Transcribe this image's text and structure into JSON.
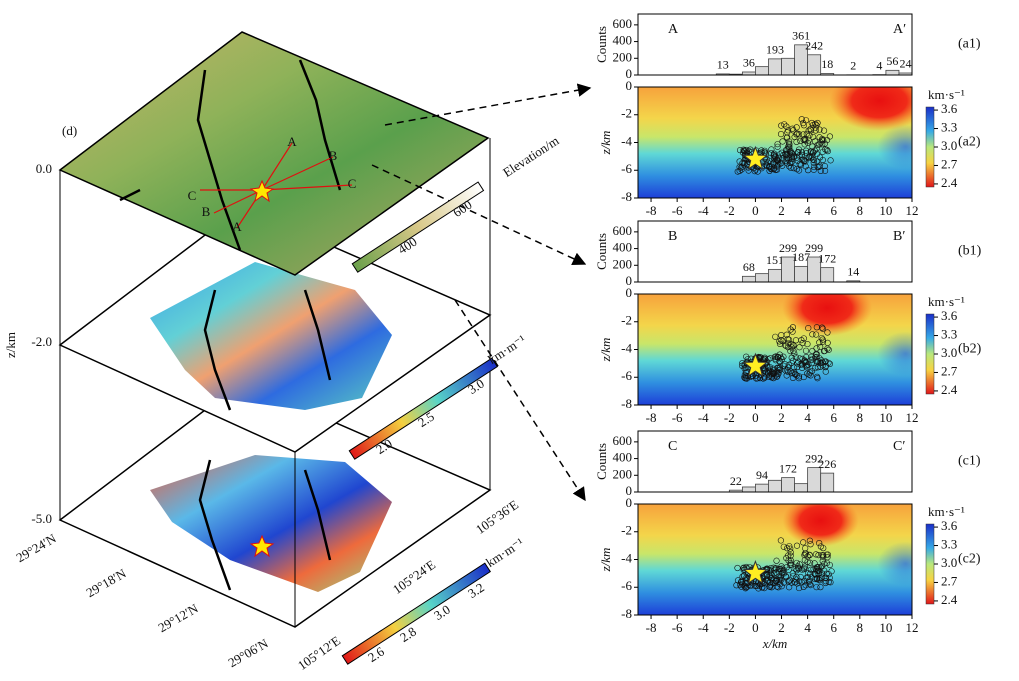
{
  "panel_d": {
    "label": "(d)",
    "z_label": "z/km",
    "z_ticks": [
      "0.0",
      "-2.0",
      "-5.0"
    ],
    "elevation": {
      "label": "Elevation/m",
      "ticks": [
        "400",
        "600"
      ]
    },
    "vel_mid": {
      "unit": "km·m⁻¹",
      "ticks": [
        "2.0",
        "2.5",
        "3.0"
      ]
    },
    "vel_bottom": {
      "unit": "km·m⁻¹",
      "ticks": [
        "2.6",
        "2.8",
        "3.0",
        "3.2"
      ]
    },
    "lat_ticks": [
      "29°24′N",
      "29°18′N",
      "29°12′N",
      "29°06′N"
    ],
    "lon_ticks": [
      "105°12′E",
      "105°24′E",
      "105°36′E"
    ],
    "profile_ends": [
      "A",
      "B",
      "C",
      "C",
      "B",
      "A"
    ]
  },
  "chart_data": [
    {
      "type": "histogram",
      "label": "(a1)",
      "start": "A",
      "end": "A′",
      "ylabel": "Counts",
      "color": "#d9d9d9",
      "bins": [
        -9,
        -8,
        -7,
        -6,
        -5,
        -4,
        -3,
        -2,
        -1,
        0,
        1,
        2,
        3,
        4,
        5,
        6,
        7,
        8,
        9,
        10,
        11,
        12
      ],
      "values": [
        0,
        0,
        0,
        0,
        0,
        0,
        13,
        10,
        36,
        100,
        193,
        200,
        361,
        242,
        18,
        0,
        2,
        0,
        4,
        56,
        24
      ],
      "value_labels": [
        null,
        null,
        null,
        null,
        null,
        null,
        "13",
        null,
        "36",
        null,
        "193",
        null,
        "361",
        "242",
        "18",
        null,
        "2",
        null,
        "4",
        "56",
        "24"
      ],
      "xlim": [
        -9,
        12
      ],
      "ylim": [
        0,
        730
      ],
      "yticks": [
        0,
        200,
        400,
        600
      ]
    },
    {
      "type": "section",
      "label": "(a2)",
      "ylabel": "z/km",
      "xlim": [
        -9,
        12
      ],
      "ylim": [
        -8,
        0
      ],
      "xticks": [
        -8,
        -6,
        -4,
        -2,
        0,
        2,
        4,
        6,
        8,
        10,
        12
      ],
      "yticks": [
        0,
        -2,
        -4,
        -6,
        -8
      ],
      "star": {
        "x": 0,
        "z": -5.2
      },
      "colorbar": {
        "label": "km·s⁻¹",
        "lim": [
          2.35,
          3.65
        ],
        "ticks": [
          3.6,
          3.3,
          {
            "value": 3,
            "label": "3.0"
          },
          2.7,
          2.4
        ]
      }
    },
    {
      "type": "histogram",
      "label": "(b1)",
      "start": "B",
      "end": "B′",
      "ylabel": "Counts",
      "color": "#d9d9d9",
      "bins": [
        -9,
        -8,
        -7,
        -6,
        -5,
        -4,
        -3,
        -2,
        -1,
        0,
        1,
        2,
        3,
        4,
        5,
        6,
        7,
        8,
        9,
        10,
        11,
        12
      ],
      "values": [
        0,
        0,
        0,
        0,
        0,
        0,
        0,
        0,
        68,
        100,
        151,
        299,
        187,
        299,
        172,
        0,
        14,
        0,
        0,
        0,
        0
      ],
      "value_labels": [
        null,
        null,
        null,
        null,
        null,
        null,
        null,
        null,
        "68",
        null,
        "151",
        "299",
        "187",
        "299",
        "172",
        null,
        "14",
        null,
        null,
        null,
        null
      ],
      "xlim": [
        -9,
        12
      ],
      "ylim": [
        0,
        730
      ],
      "yticks": [
        0,
        200,
        400,
        600
      ]
    },
    {
      "type": "section",
      "label": "(b2)",
      "ylabel": "z/km",
      "xlim": [
        -9,
        12
      ],
      "ylim": [
        -8,
        0
      ],
      "xticks": [
        -8,
        -6,
        -4,
        -2,
        0,
        2,
        4,
        6,
        8,
        10,
        12
      ],
      "yticks": [
        0,
        -2,
        -4,
        -6,
        -8
      ],
      "star": {
        "x": 0,
        "z": -5.2
      },
      "colorbar": {
        "label": "km·s⁻¹",
        "lim": [
          2.35,
          3.65
        ],
        "ticks": [
          3.6,
          3.3,
          {
            "value": 3,
            "label": "3.0"
          },
          2.7,
          2.4
        ]
      }
    },
    {
      "type": "histogram",
      "label": "(c1)",
      "start": "C",
      "end": "C′",
      "ylabel": "Counts",
      "color": "#d9d9d9",
      "bins": [
        -9,
        -8,
        -7,
        -6,
        -5,
        -4,
        -3,
        -2,
        -1,
        0,
        1,
        2,
        3,
        4,
        5,
        6,
        7,
        8,
        9,
        10,
        11,
        12
      ],
      "values": [
        0,
        0,
        0,
        0,
        0,
        0,
        0,
        22,
        60,
        94,
        140,
        172,
        100,
        292,
        226,
        0,
        0,
        0,
        0,
        0,
        0
      ],
      "value_labels": [
        null,
        null,
        null,
        null,
        null,
        null,
        null,
        "22",
        null,
        "94",
        null,
        "172",
        null,
        "292",
        "226",
        null,
        null,
        null,
        null,
        null,
        null
      ],
      "xlim": [
        -9,
        12
      ],
      "ylim": [
        0,
        730
      ],
      "yticks": [
        0,
        200,
        400,
        600
      ]
    },
    {
      "type": "section",
      "label": "(c2)",
      "ylabel": "z/km",
      "xlabel": "x/km",
      "xlim": [
        -9,
        12
      ],
      "ylim": [
        -8,
        0
      ],
      "xticks": [
        -8,
        -6,
        -4,
        -2,
        0,
        2,
        4,
        6,
        8,
        10,
        12
      ],
      "yticks": [
        0,
        -2,
        -4,
        -6,
        -8
      ],
      "star": {
        "x": 0,
        "z": -5
      },
      "colorbar": {
        "label": "km·s⁻¹",
        "lim": [
          2.35,
          3.65
        ],
        "ticks": [
          3.6,
          3.3,
          {
            "value": 3,
            "label": "3.0"
          },
          2.7,
          2.4
        ]
      }
    }
  ]
}
